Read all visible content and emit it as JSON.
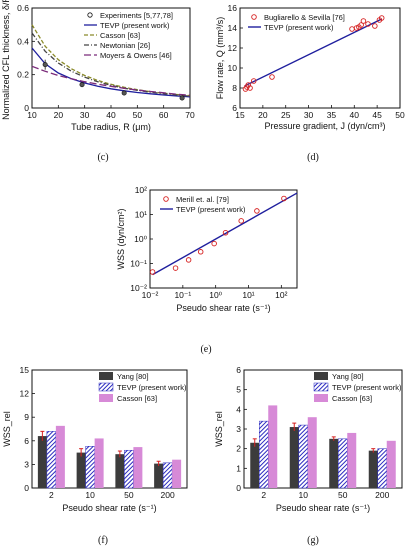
{
  "chart_data": [
    {
      "id": "c",
      "type": "line",
      "panel_label": "(c)",
      "xlabel": "Tube radius, R (μm)",
      "ylabel": "Normalized CFL thickness, δ/R",
      "xlim": [
        10,
        70
      ],
      "ylim": [
        0,
        0.6
      ],
      "xticks": [
        "10",
        "20",
        "30",
        "40",
        "50",
        "60",
        "70"
      ],
      "yticks": [
        "0",
        "0.2",
        "0.4",
        "0.6"
      ],
      "legend_position": "top-right",
      "points": {
        "name": "Experiments [5,77,78]",
        "x": [
          15,
          29,
          45,
          67
        ],
        "y": [
          0.26,
          0.14,
          0.09,
          0.06
        ],
        "yerr": [
          0.03,
          0.015,
          0.01,
          0.005
        ]
      },
      "series": [
        {
          "name": "TEVP (present work)",
          "style": "solid",
          "color": "#1f1f9e",
          "x": [
            10,
            15,
            20,
            25,
            30,
            35,
            40,
            45,
            50,
            55,
            60,
            65,
            70
          ],
          "y": [
            0.36,
            0.265,
            0.21,
            0.175,
            0.15,
            0.13,
            0.115,
            0.103,
            0.093,
            0.085,
            0.078,
            0.072,
            0.067
          ]
        },
        {
          "name": "Casson [63]",
          "style": "dashed",
          "color": "#8b8b2a",
          "x": [
            10,
            15,
            20,
            25,
            30,
            35,
            40,
            45,
            50,
            55,
            60,
            65,
            70
          ],
          "y": [
            0.5,
            0.37,
            0.29,
            0.235,
            0.195,
            0.165,
            0.142,
            0.124,
            0.11,
            0.098,
            0.089,
            0.081,
            0.074
          ]
        },
        {
          "name": "Newtonian [26]",
          "style": "dashdot",
          "color": "#444444",
          "x": [
            10,
            15,
            20,
            25,
            30,
            35,
            40,
            45,
            50,
            55,
            60,
            65,
            70
          ],
          "y": [
            0.45,
            0.34,
            0.27,
            0.22,
            0.185,
            0.157,
            0.136,
            0.119,
            0.106,
            0.095,
            0.086,
            0.078,
            0.071
          ]
        },
        {
          "name": "Moyers & Owens [46]",
          "style": "longdash",
          "color": "#7a2a7a",
          "x": [
            10,
            15,
            20,
            25,
            30,
            35,
            40,
            45,
            50,
            55,
            60,
            65,
            70
          ],
          "y": [
            0.25,
            0.22,
            0.195,
            0.175,
            0.158,
            0.143,
            0.13,
            0.118,
            0.108,
            0.099,
            0.091,
            0.083,
            0.077
          ]
        }
      ]
    },
    {
      "id": "d",
      "type": "scatter",
      "panel_label": "(d)",
      "xlabel": "Pressure gradient, J (dyn/cm³)",
      "ylabel": "Flow rate, Q (mm³/s)",
      "xlim": [
        15,
        50
      ],
      "ylim": [
        6,
        16
      ],
      "xticks": [
        "15",
        "20",
        "25",
        "30",
        "35",
        "40",
        "45",
        "50"
      ],
      "yticks": [
        "6",
        "8",
        "10",
        "12",
        "14",
        "16"
      ],
      "legend_position": "top-left",
      "points": {
        "name": "Bugliarello & Sevilla [76]",
        "x": [
          16.2,
          16.5,
          16.8,
          17.2,
          18,
          22,
          39.5,
          40.5,
          41,
          41.5,
          42,
          43,
          44.5,
          45.5,
          46
        ],
        "y": [
          7.9,
          8.1,
          8.3,
          8.0,
          8.7,
          9.1,
          13.9,
          14.0,
          14.1,
          14.3,
          14.7,
          14.4,
          14.2,
          14.8,
          15.0
        ]
      },
      "series": [
        {
          "name": "TEVP (present work)",
          "x": [
            16,
            46
          ],
          "y": [
            8.2,
            14.9
          ]
        }
      ]
    },
    {
      "id": "e",
      "type": "scatter",
      "panel_label": "(e)",
      "xlabel": "Pseudo shear rate (s⁻¹)",
      "ylabel": "WSS (dyn/cm²)",
      "xscale": "log",
      "yscale": "log",
      "xlim": [
        0.01,
        300
      ],
      "ylim": [
        0.01,
        100
      ],
      "xticks": [
        "10⁻²",
        "10⁻¹",
        "10⁰",
        "10¹",
        "10²"
      ],
      "yticks": [
        "10⁻²",
        "10⁻¹",
        "10⁰",
        "10¹",
        "10²"
      ],
      "legend_position": "top-left",
      "points": {
        "name": "Merill et. al. [79]",
        "x": [
          0.012,
          0.06,
          0.15,
          0.35,
          0.9,
          2.0,
          6.0,
          18.0,
          120.0
        ],
        "y": [
          0.045,
          0.065,
          0.14,
          0.3,
          0.65,
          1.8,
          5.5,
          14.0,
          45.0
        ]
      },
      "series": [
        {
          "name": "TEVP (present work)",
          "x": [
            0.012,
            300
          ],
          "y": [
            0.035,
            75
          ]
        }
      ]
    },
    {
      "id": "f",
      "type": "bar",
      "panel_label": "(f)",
      "xlabel": "Pseudo shear rate (s⁻¹)",
      "ylabel": "WSS_rel",
      "categories": [
        "2",
        "10",
        "50",
        "200"
      ],
      "ylim": [
        0,
        15
      ],
      "yticks": [
        "0",
        "3",
        "6",
        "9",
        "12",
        "15"
      ],
      "legend_position": "top-right",
      "series": [
        {
          "name": "Yang [80]",
          "color": "#3c3c3c",
          "values": [
            6.6,
            4.5,
            4.3,
            3.1
          ],
          "errors": [
            0.6,
            0.5,
            0.4,
            0.3
          ]
        },
        {
          "name": "TEVP (present work)",
          "color": "#2b2bbf",
          "pattern": "hatch",
          "values": [
            7.2,
            5.3,
            4.8,
            3.2
          ]
        },
        {
          "name": "Casson [63]",
          "color": "#d78ad7",
          "values": [
            7.9,
            6.3,
            5.2,
            3.6
          ]
        }
      ]
    },
    {
      "id": "g",
      "type": "bar",
      "panel_label": "(g)",
      "xlabel": "Pseudo shear rate (s⁻¹)",
      "ylabel": "WSS_rel",
      "categories": [
        "2",
        "10",
        "50",
        "200"
      ],
      "ylim": [
        0,
        6
      ],
      "yticks": [
        "0",
        "1",
        "2",
        "3",
        "4",
        "5",
        "6"
      ],
      "legend_position": "top-right",
      "series": [
        {
          "name": "Yang [80]",
          "color": "#3c3c3c",
          "values": [
            2.3,
            3.1,
            2.5,
            1.9
          ],
          "errors": [
            0.2,
            0.2,
            0.1,
            0.1
          ]
        },
        {
          "name": "TEVP (present work)",
          "color": "#2b2bbf",
          "pattern": "hatch",
          "values": [
            3.4,
            3.2,
            2.5,
            2.0
          ]
        },
        {
          "name": "Casson [63]",
          "color": "#d78ad7",
          "values": [
            4.2,
            3.6,
            2.8,
            2.4
          ]
        }
      ]
    }
  ]
}
